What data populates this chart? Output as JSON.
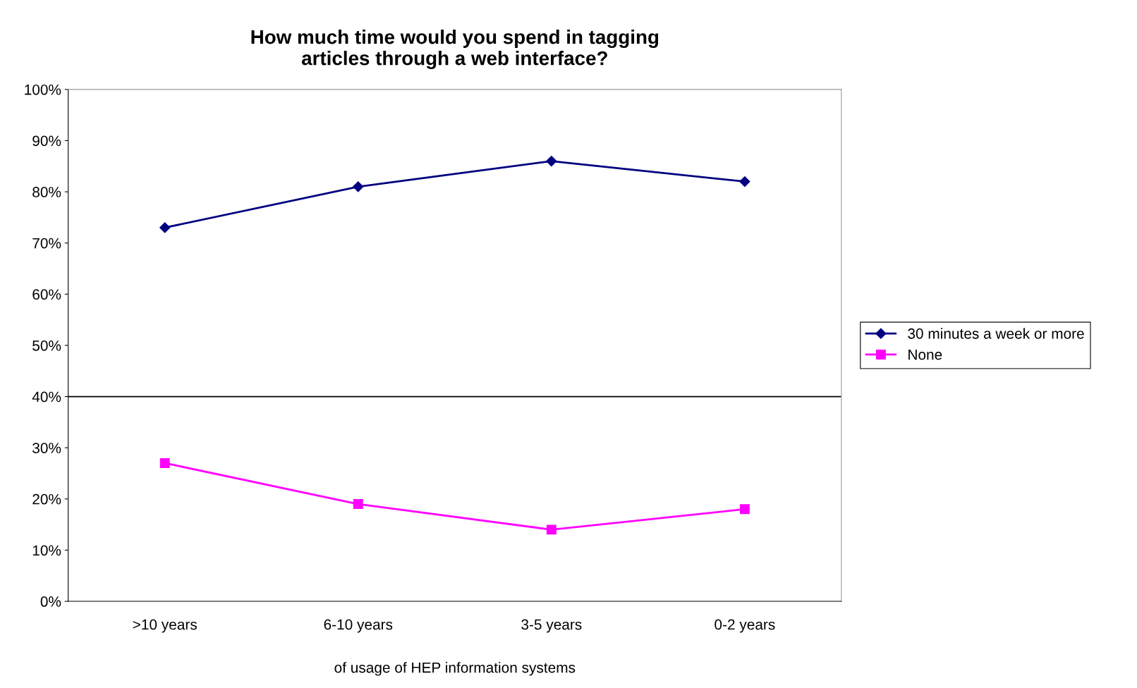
{
  "chart_data": {
    "type": "line",
    "title": "How much time would you spend in tagging\narticles through a web interface?",
    "xlabel": "of usage of HEP information systems",
    "categories": [
      ">10 years",
      "6-10 years",
      "3-5 years",
      "0-2 years"
    ],
    "series": [
      {
        "name": "30 minutes a week or more",
        "color": "#000080",
        "marker": "diamond",
        "values": [
          73,
          81,
          86,
          82
        ]
      },
      {
        "name": "None",
        "color": "#ff00ff",
        "marker": "square",
        "values": [
          27,
          19,
          14,
          18
        ]
      }
    ],
    "ylim": [
      0,
      100
    ],
    "yticks": [
      {
        "value": 0,
        "label": "0%"
      },
      {
        "value": 10,
        "label": "10%"
      },
      {
        "value": 20,
        "label": "20%"
      },
      {
        "value": 30,
        "label": "30%"
      },
      {
        "value": 40,
        "label": "40%"
      },
      {
        "value": 50,
        "label": "50%"
      },
      {
        "value": 60,
        "label": "60%"
      },
      {
        "value": 70,
        "label": "70%"
      },
      {
        "value": 80,
        "label": "80%"
      },
      {
        "value": 90,
        "label": "90%"
      },
      {
        "value": 100,
        "label": "100%"
      }
    ],
    "ref_lines": [
      {
        "axis": "y",
        "value": 40,
        "color": "#000000"
      }
    ],
    "grid": false,
    "legend": "right",
    "line_style": "solid"
  }
}
